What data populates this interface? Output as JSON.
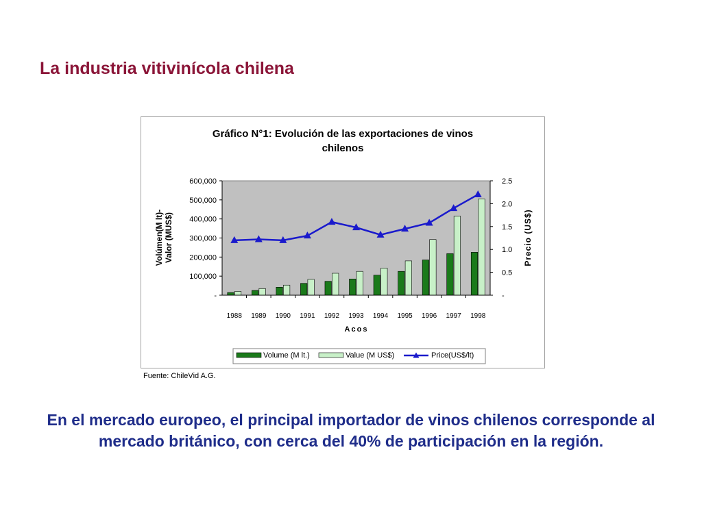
{
  "slide": {
    "title": "La industria vitivinícola chilena",
    "source": "Fuente: ChileVid A.G.",
    "body": "En el mercado europeo, el principal importador de vinos chilenos corresponde al mercado británico, con cerca del 40% de participación en la región."
  },
  "colors": {
    "title": "#8b1538",
    "body": "#1f2d8a",
    "volume": "#1a7a1a",
    "value": "#c8f0c8",
    "price": "#1a1acc",
    "plot_bg": "#c0c0c0"
  },
  "chart_data": {
    "type": "bar",
    "title_line1": "Gráfico N°1: Evolución de las exportaciones de vinos",
    "title_line2": "chilenos",
    "xlabel": "Acos",
    "ylabel_left_line1": "Volúmen(M lt)-",
    "ylabel_left_line2": "Valor (MUS$)",
    "ylabel_right": "Precio (US$)",
    "categories": [
      "1988",
      "1989",
      "1990",
      "1991",
      "1992",
      "1993",
      "1994",
      "1995",
      "1996",
      "1997",
      "1998"
    ],
    "ylim_left": [
      0,
      600000
    ],
    "ylim_right": [
      0,
      2.5
    ],
    "left_ticks": [
      "-",
      "100,000",
      "200,000",
      "300,000",
      "400,000",
      "500,000",
      "600,000"
    ],
    "right_ticks": [
      "-",
      "0.5",
      "1.0",
      "1.5",
      "2.0",
      "2.5"
    ],
    "grid": false,
    "legend_position": "bottom",
    "series": [
      {
        "name": "Volume (M lt.)",
        "type": "bar",
        "axis": "left",
        "values": [
          14000,
          25000,
          42000,
          62000,
          73000,
          85000,
          105000,
          125000,
          185000,
          218000,
          225000
        ]
      },
      {
        "name": "Value (M US$)",
        "type": "bar",
        "axis": "left",
        "values": [
          20000,
          35000,
          53000,
          83000,
          115000,
          125000,
          142000,
          180000,
          292000,
          415000,
          505000
        ]
      },
      {
        "name": "Price(US$/lt)",
        "type": "line",
        "axis": "right",
        "values": [
          1.2,
          1.22,
          1.2,
          1.3,
          1.6,
          1.48,
          1.32,
          1.45,
          1.58,
          1.9,
          2.2
        ]
      }
    ]
  }
}
